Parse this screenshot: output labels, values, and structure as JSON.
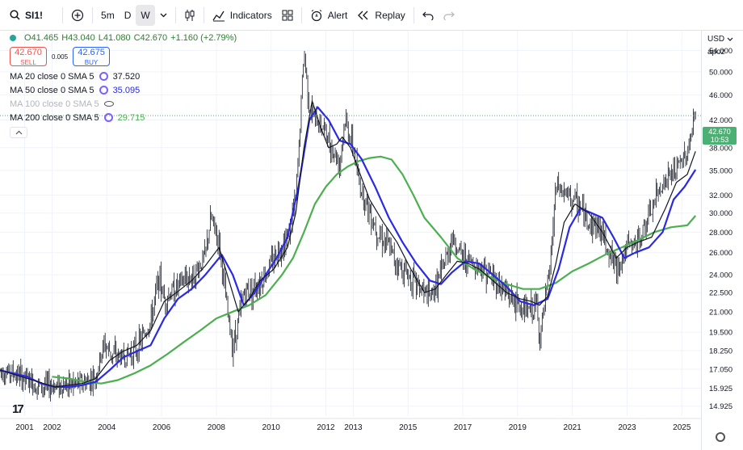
{
  "toolbar": {
    "symbol": "SI1!",
    "intervals": [
      "5m",
      "D",
      "W"
    ],
    "active_interval": "W",
    "indicators_label": "Indicators",
    "alert_label": "Alert",
    "replay_label": "Replay"
  },
  "legend": {
    "open": "O41.465",
    "high": "H43.040",
    "low": "L41.080",
    "close": "C42.670",
    "change": "+1.160 (+2.79%)",
    "sell_price": "42.670",
    "sell_label": "SELL",
    "spread": "0.005",
    "buy_price": "42.675",
    "buy_label": "BUY",
    "mas": [
      {
        "label": "MA 20 close 0 SMA 5",
        "value": "37.520",
        "color": "#131722",
        "visible": true
      },
      {
        "label": "MA 50 close 0 SMA 5",
        "value": "35.095",
        "color": "#2929e6",
        "visible": true
      },
      {
        "label": "MA 100 close 0 SMA 5",
        "value": "",
        "color": "#b2b5be",
        "visible": false
      },
      {
        "label": "MA 200 close 0 SMA 5",
        "value": "29.715",
        "color": "#4caf50",
        "visible": true
      }
    ]
  },
  "axis": {
    "currency": "USD",
    "scale_mode": "apoz",
    "last_price": "42.670",
    "countdown": "10:53"
  },
  "colors": {
    "candles": "#131722",
    "ma20": "#131722",
    "ma50": "#2929e6",
    "ma200": "#4caf50",
    "last_price": "#4caf73"
  },
  "chart_data": {
    "type": "line",
    "scale": "log",
    "y_ticks": [
      54.0,
      50.0,
      46.0,
      42.0,
      38.0,
      35.0,
      32.0,
      30.0,
      28.0,
      26.0,
      24.0,
      22.5,
      21.0,
      19.5,
      18.25,
      17.05,
      15.925,
      14.925
    ],
    "x_ticks": [
      "2001",
      "2002",
      "2004",
      "2006",
      "2008",
      "2010",
      "2012",
      "2013",
      "2015",
      "2017",
      "2019",
      "2021",
      "2023",
      "2025"
    ],
    "x_tick_years": [
      2001.4,
      2002.4,
      2004.4,
      2006.4,
      2008.4,
      2010.4,
      2012.4,
      2013.4,
      2015.4,
      2017.4,
      2019.4,
      2021.4,
      2023.4,
      2025.4
    ],
    "x_range": [
      2000.5,
      2026.1
    ],
    "y_range": [
      14.4,
      58.0
    ],
    "price": {
      "x": [
        2000.5,
        2001.0,
        2001.5,
        2002.0,
        2002.5,
        2003.0,
        2003.5,
        2004.0,
        2004.3,
        2004.6,
        2005.0,
        2005.5,
        2006.0,
        2006.3,
        2006.5,
        2006.8,
        2007.2,
        2007.6,
        2008.0,
        2008.2,
        2008.5,
        2008.8,
        2009.0,
        2009.4,
        2009.8,
        2010.2,
        2010.6,
        2011.0,
        2011.3,
        2011.4,
        2011.6,
        2011.8,
        2012.0,
        2012.3,
        2012.6,
        2012.9,
        2013.1,
        2013.4,
        2013.6,
        2013.9,
        2014.3,
        2014.6,
        2015.0,
        2015.4,
        2015.8,
        2016.2,
        2016.5,
        2016.8,
        2017.0,
        2017.4,
        2017.8,
        2018.2,
        2018.6,
        2019.0,
        2019.4,
        2019.8,
        2020.1,
        2020.2,
        2020.4,
        2020.6,
        2020.8,
        2021.2,
        2021.6,
        2022.0,
        2022.4,
        2022.7,
        2023.0,
        2023.4,
        2023.8,
        2024.2,
        2024.6,
        2024.9,
        2025.2,
        2025.6,
        2025.9
      ],
      "y": [
        17.0,
        16.8,
        16.4,
        16.0,
        16.1,
        16.1,
        16.2,
        16.6,
        18.7,
        18.0,
        17.8,
        18.4,
        20.2,
        23.8,
        22.0,
        22.6,
        23.5,
        24.0,
        25.8,
        29.5,
        27.0,
        21.0,
        18.5,
        22.5,
        23.0,
        24.0,
        26.0,
        27.5,
        31.5,
        37.0,
        54.0,
        44.0,
        42.0,
        41.0,
        38.0,
        36.0,
        42.0,
        38.0,
        33.5,
        31.0,
        28.0,
        27.0,
        25.0,
        24.0,
        23.0,
        22.0,
        23.5,
        25.5,
        27.5,
        25.5,
        25.0,
        24.5,
        23.5,
        22.5,
        21.5,
        21.0,
        21.5,
        19.0,
        21.5,
        25.0,
        33.0,
        32.0,
        31.0,
        29.0,
        28.5,
        26.5,
        24.5,
        26.5,
        27.0,
        29.5,
        33.0,
        34.0,
        35.0,
        37.5,
        42.67
      ]
    },
    "ma20": {
      "x": [
        2000.5,
        2001.5,
        2002.5,
        2003.5,
        2004.0,
        2004.5,
        2005.0,
        2005.5,
        2006.0,
        2006.5,
        2007.0,
        2007.5,
        2008.0,
        2008.5,
        2008.8,
        2009.2,
        2009.6,
        2010.0,
        2010.5,
        2011.0,
        2011.3,
        2011.6,
        2011.9,
        2012.2,
        2012.5,
        2012.8,
        2013.0,
        2013.3,
        2013.6,
        2014.0,
        2014.5,
        2015.0,
        2015.5,
        2016.0,
        2016.4,
        2016.8,
        2017.2,
        2017.6,
        2018.0,
        2018.5,
        2019.0,
        2019.5,
        2019.9,
        2020.2,
        2020.5,
        2020.8,
        2021.1,
        2021.5,
        2022.0,
        2022.5,
        2023.0,
        2023.4,
        2023.8,
        2024.3,
        2024.8,
        2025.2,
        2025.6,
        2025.9
      ],
      "y": [
        17.0,
        16.5,
        16.0,
        16.2,
        16.5,
        17.6,
        18.2,
        18.6,
        19.6,
        21.8,
        22.6,
        23.5,
        24.8,
        26.5,
        24.0,
        21.0,
        22.0,
        23.5,
        24.5,
        26.5,
        30.0,
        38.0,
        45.0,
        41.0,
        38.0,
        38.5,
        39.5,
        38.0,
        35.0,
        31.5,
        29.0,
        27.0,
        24.5,
        22.5,
        22.8,
        24.0,
        25.2,
        25.0,
        24.5,
        23.5,
        22.5,
        22.0,
        21.8,
        21.5,
        22.2,
        25.0,
        29.0,
        31.0,
        30.0,
        28.0,
        25.5,
        26.5,
        27.0,
        27.5,
        30.5,
        33.5,
        34.5,
        37.5
      ]
    },
    "ma50": {
      "x": [
        2000.5,
        2001.5,
        2002.0,
        2002.5,
        2003.0,
        2003.5,
        2004.0,
        2004.5,
        2005.0,
        2005.5,
        2006.0,
        2006.5,
        2007.0,
        2007.5,
        2008.0,
        2008.6,
        2009.0,
        2009.4,
        2009.8,
        2010.2,
        2010.6,
        2011.0,
        2011.4,
        2011.8,
        2012.1,
        2012.5,
        2012.9,
        2013.3,
        2013.7,
        2014.2,
        2014.7,
        2015.2,
        2015.7,
        2016.2,
        2016.6,
        2017.0,
        2017.5,
        2018.0,
        2018.5,
        2019.0,
        2019.5,
        2020.0,
        2020.5,
        2020.9,
        2021.3,
        2021.7,
        2022.1,
        2022.5,
        2022.9,
        2023.3,
        2023.7,
        2024.2,
        2024.7,
        2025.1,
        2025.5,
        2025.9
      ],
      "y": [
        17.0,
        16.6,
        16.2,
        16.0,
        16.0,
        16.1,
        16.3,
        17.0,
        17.8,
        18.2,
        18.6,
        20.5,
        22.0,
        22.8,
        24.0,
        25.8,
        24.0,
        21.5,
        22.5,
        24.0,
        25.5,
        27.5,
        33.0,
        42.0,
        44.0,
        42.0,
        39.0,
        38.5,
        36.5,
        33.0,
        29.5,
        27.0,
        25.0,
        23.5,
        23.2,
        24.2,
        25.2,
        25.0,
        24.0,
        23.0,
        21.8,
        21.5,
        22.0,
        24.5,
        28.5,
        30.5,
        30.0,
        29.5,
        27.5,
        25.5,
        26.0,
        26.5,
        28.0,
        31.5,
        33.0,
        35.095
      ]
    },
    "ma200": {
      "x": [
        2002.4,
        2003.0,
        2003.6,
        2004.2,
        2004.8,
        2005.4,
        2006.0,
        2006.6,
        2007.2,
        2007.8,
        2008.4,
        2009.0,
        2009.6,
        2010.2,
        2010.8,
        2011.2,
        2011.6,
        2012.0,
        2012.4,
        2012.8,
        2013.2,
        2013.6,
        2014.0,
        2014.4,
        2014.8,
        2015.2,
        2015.6,
        2016.0,
        2016.6,
        2017.2,
        2017.8,
        2018.4,
        2019.0,
        2019.6,
        2020.2,
        2020.8,
        2021.4,
        2022.0,
        2022.6,
        2023.2,
        2023.8,
        2024.4,
        2025.0,
        2025.6,
        2025.9
      ],
      "y": [
        16.6,
        16.5,
        16.3,
        16.2,
        16.4,
        16.8,
        17.3,
        18.0,
        18.8,
        19.6,
        20.5,
        21.0,
        21.5,
        22.3,
        24.0,
        25.5,
        28.0,
        31.0,
        33.0,
        34.5,
        35.5,
        36.2,
        36.6,
        36.8,
        36.4,
        34.5,
        32.0,
        29.5,
        27.5,
        25.5,
        24.5,
        23.8,
        23.2,
        22.8,
        22.8,
        23.3,
        24.3,
        25.0,
        25.8,
        26.5,
        27.2,
        28.0,
        28.5,
        28.7,
        29.715
      ]
    }
  }
}
